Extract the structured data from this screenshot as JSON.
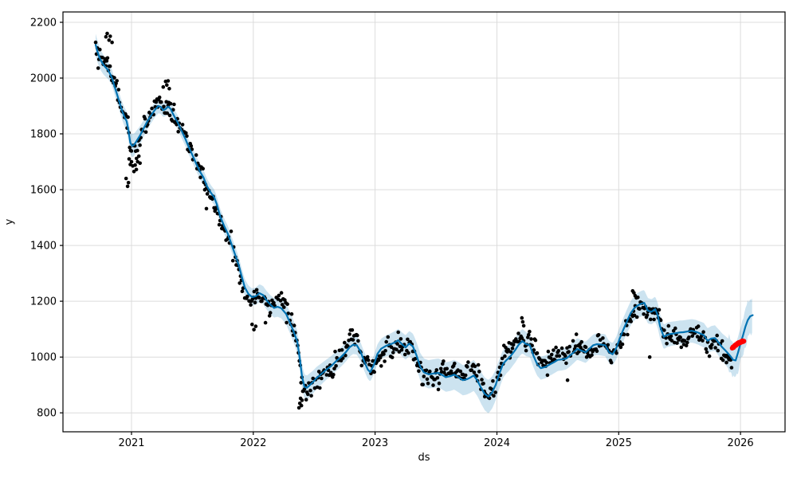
{
  "figure": {
    "kind": "matplotlib forecast plot"
  },
  "chart_data": {
    "type": "line",
    "title": "",
    "xlabel": "ds",
    "ylabel": "y",
    "xlim": [
      2020.437,
      2026.366
    ],
    "ylim": [
      732,
      2237
    ],
    "xticks": [
      2021,
      2022,
      2023,
      2024,
      2025,
      2026
    ],
    "yticks": [
      800,
      1000,
      1200,
      1400,
      1600,
      1800,
      2000,
      2200
    ],
    "grid": true,
    "legend": "none",
    "colors": {
      "trend_line": "#0072B2",
      "uncertainty_band": "#0072B2",
      "band_opacity": 0.2,
      "history_points": "#000000",
      "highlight_points": "#ff0000",
      "grid_line": "#dcdcdc",
      "spine": "#000000"
    },
    "series": [
      {
        "name": "forecast-trend-yhat",
        "kind": "line",
        "width": 2.2,
        "points": [
          [
            2020.705,
            2119
          ],
          [
            2020.72,
            2096
          ],
          [
            2020.735,
            2076
          ],
          [
            2020.75,
            2062
          ],
          [
            2020.77,
            2047
          ],
          [
            2020.79,
            2037
          ],
          [
            2020.81,
            2027
          ],
          [
            2020.825,
            2014
          ],
          [
            2020.84,
            2000
          ],
          [
            2020.86,
            1971
          ],
          [
            2020.88,
            1943
          ],
          [
            2020.9,
            1914
          ],
          [
            2020.92,
            1886
          ],
          [
            2020.94,
            1863
          ],
          [
            2020.96,
            1845
          ],
          [
            2020.975,
            1812
          ],
          [
            2020.99,
            1768
          ],
          [
            2021.005,
            1757
          ],
          [
            2021.02,
            1760
          ],
          [
            2021.04,
            1773
          ],
          [
            2021.07,
            1794
          ],
          [
            2021.1,
            1820
          ],
          [
            2021.13,
            1845
          ],
          [
            2021.16,
            1866
          ],
          [
            2021.19,
            1885
          ],
          [
            2021.22,
            1900
          ],
          [
            2021.24,
            1897
          ],
          [
            2021.26,
            1885
          ],
          [
            2021.28,
            1889
          ],
          [
            2021.3,
            1898
          ],
          [
            2021.32,
            1890
          ],
          [
            2021.34,
            1872
          ],
          [
            2021.36,
            1856
          ],
          [
            2021.38,
            1840
          ],
          [
            2021.41,
            1812
          ],
          [
            2021.44,
            1784
          ],
          [
            2021.47,
            1752
          ],
          [
            2021.5,
            1724
          ],
          [
            2021.53,
            1694
          ],
          [
            2021.56,
            1666
          ],
          [
            2021.59,
            1644
          ],
          [
            2021.62,
            1612
          ],
          [
            2021.65,
            1590
          ],
          [
            2021.68,
            1572
          ],
          [
            2021.7,
            1548
          ],
          [
            2021.73,
            1502
          ],
          [
            2021.76,
            1470
          ],
          [
            2021.79,
            1443
          ],
          [
            2021.82,
            1406
          ],
          [
            2021.85,
            1368
          ],
          [
            2021.88,
            1330
          ],
          [
            2021.9,
            1296
          ],
          [
            2021.93,
            1250
          ],
          [
            2021.96,
            1226
          ],
          [
            2021.99,
            1215
          ],
          [
            2022.02,
            1218
          ],
          [
            2022.05,
            1229
          ],
          [
            2022.08,
            1222
          ],
          [
            2022.11,
            1203
          ],
          [
            2022.14,
            1188
          ],
          [
            2022.17,
            1176
          ],
          [
            2022.2,
            1180
          ],
          [
            2022.23,
            1175
          ],
          [
            2022.27,
            1154
          ],
          [
            2022.3,
            1124
          ],
          [
            2022.33,
            1092
          ],
          [
            2022.36,
            1056
          ],
          [
            2022.38,
            1000
          ],
          [
            2022.4,
            930
          ],
          [
            2022.42,
            893
          ],
          [
            2022.44,
            890
          ],
          [
            2022.46,
            898
          ],
          [
            2022.49,
            910
          ],
          [
            2022.52,
            925
          ],
          [
            2022.56,
            940
          ],
          [
            2022.6,
            955
          ],
          [
            2022.64,
            968
          ],
          [
            2022.68,
            985
          ],
          [
            2022.72,
            1000
          ],
          [
            2022.76,
            1018
          ],
          [
            2022.79,
            1035
          ],
          [
            2022.82,
            1044
          ],
          [
            2022.85,
            1042
          ],
          [
            2022.88,
            1020
          ],
          [
            2022.91,
            985
          ],
          [
            2022.94,
            955
          ],
          [
            2022.96,
            946
          ],
          [
            2022.99,
            972
          ],
          [
            2023.02,
            1012
          ],
          [
            2023.05,
            1030
          ],
          [
            2023.09,
            1040
          ],
          [
            2023.13,
            1046
          ],
          [
            2023.16,
            1052
          ],
          [
            2023.19,
            1060
          ],
          [
            2023.22,
            1046
          ],
          [
            2023.25,
            1034
          ],
          [
            2023.28,
            1048
          ],
          [
            2023.31,
            1038
          ],
          [
            2023.34,
            1006
          ],
          [
            2023.37,
            966
          ],
          [
            2023.4,
            945
          ],
          [
            2023.44,
            938
          ],
          [
            2023.48,
            941
          ],
          [
            2023.52,
            943
          ],
          [
            2023.55,
            936
          ],
          [
            2023.58,
            928
          ],
          [
            2023.62,
            932
          ],
          [
            2023.65,
            937
          ],
          [
            2023.69,
            926
          ],
          [
            2023.72,
            917
          ],
          [
            2023.75,
            920
          ],
          [
            2023.78,
            926
          ],
          [
            2023.81,
            934
          ],
          [
            2023.84,
            916
          ],
          [
            2023.87,
            890
          ],
          [
            2023.9,
            868
          ],
          [
            2023.93,
            858
          ],
          [
            2023.96,
            872
          ],
          [
            2023.99,
            900
          ],
          [
            2024.02,
            940
          ],
          [
            2024.05,
            975
          ],
          [
            2024.08,
            990
          ],
          [
            2024.1,
            997
          ],
          [
            2024.12,
            1008
          ],
          [
            2024.15,
            1025
          ],
          [
            2024.18,
            1045
          ],
          [
            2024.21,
            1057
          ],
          [
            2024.24,
            1046
          ],
          [
            2024.27,
            1043
          ],
          [
            2024.3,
            1005
          ],
          [
            2024.33,
            975
          ],
          [
            2024.36,
            960
          ],
          [
            2024.4,
            965
          ],
          [
            2024.44,
            975
          ],
          [
            2024.47,
            982
          ],
          [
            2024.5,
            990
          ],
          [
            2024.54,
            992
          ],
          [
            2024.57,
            995
          ],
          [
            2024.6,
            1005
          ],
          [
            2024.63,
            1017
          ],
          [
            2024.66,
            1029
          ],
          [
            2024.7,
            1022
          ],
          [
            2024.73,
            1017
          ],
          [
            2024.76,
            1030
          ],
          [
            2024.79,
            1042
          ],
          [
            2024.82,
            1046
          ],
          [
            2024.86,
            1044
          ],
          [
            2024.89,
            1042
          ],
          [
            2024.92,
            1018
          ],
          [
            2024.95,
            1010
          ],
          [
            2024.98,
            1032
          ],
          [
            2025.01,
            1068
          ],
          [
            2025.04,
            1100
          ],
          [
            2025.07,
            1130
          ],
          [
            2025.1,
            1158
          ],
          [
            2025.13,
            1176
          ],
          [
            2025.16,
            1186
          ],
          [
            2025.19,
            1192
          ],
          [
            2025.21,
            1194
          ],
          [
            2025.24,
            1166
          ],
          [
            2025.27,
            1162
          ],
          [
            2025.3,
            1172
          ],
          [
            2025.32,
            1150
          ],
          [
            2025.34,
            1110
          ],
          [
            2025.37,
            1072
          ],
          [
            2025.4,
            1080
          ],
          [
            2025.43,
            1083
          ],
          [
            2025.46,
            1085
          ],
          [
            2025.5,
            1088
          ],
          [
            2025.53,
            1089
          ],
          [
            2025.57,
            1092
          ],
          [
            2025.6,
            1094
          ],
          [
            2025.63,
            1091
          ],
          [
            2025.66,
            1086
          ],
          [
            2025.7,
            1078
          ],
          [
            2025.73,
            1058
          ],
          [
            2025.76,
            1066
          ],
          [
            2025.79,
            1068
          ],
          [
            2025.82,
            1052
          ],
          [
            2025.85,
            1035
          ],
          [
            2025.88,
            1022
          ],
          [
            2025.9,
            1012
          ],
          [
            2025.92,
            1002
          ],
          [
            2025.94,
            990
          ],
          [
            2025.96,
            988
          ],
          [
            2025.98,
            1016
          ],
          [
            2026.0,
            1048
          ],
          [
            2026.02,
            1076
          ],
          [
            2026.04,
            1108
          ],
          [
            2026.06,
            1132
          ],
          [
            2026.08,
            1146
          ],
          [
            2026.1,
            1150
          ]
        ]
      },
      {
        "name": "uncertainty-interval",
        "kind": "band",
        "halfwidth": [
          [
            2020.705,
            40
          ],
          [
            2020.85,
            28
          ],
          [
            2020.95,
            34
          ],
          [
            2021.01,
            42
          ],
          [
            2021.1,
            30
          ],
          [
            2021.25,
            25
          ],
          [
            2021.4,
            26
          ],
          [
            2021.6,
            27
          ],
          [
            2021.8,
            28
          ],
          [
            2021.95,
            30
          ],
          [
            2022.1,
            33
          ],
          [
            2022.3,
            38
          ],
          [
            2022.43,
            44
          ],
          [
            2022.6,
            36
          ],
          [
            2022.85,
            33
          ],
          [
            2023.0,
            34
          ],
          [
            2023.2,
            42
          ],
          [
            2023.4,
            50
          ],
          [
            2023.6,
            53
          ],
          [
            2023.85,
            56
          ],
          [
            2023.93,
            60
          ],
          [
            2024.1,
            46
          ],
          [
            2024.3,
            42
          ],
          [
            2024.5,
            40
          ],
          [
            2024.75,
            38
          ],
          [
            2024.95,
            40
          ],
          [
            2025.2,
            46
          ],
          [
            2025.35,
            44
          ],
          [
            2025.6,
            42
          ],
          [
            2025.8,
            46
          ],
          [
            2025.93,
            55
          ],
          [
            2026.0,
            55
          ],
          [
            2026.1,
            58
          ]
        ],
        "jitter_start": 2025.89,
        "jitter_amp": 22,
        "sample_step": 0.009
      },
      {
        "name": "history-observed-points",
        "kind": "scatter-generated",
        "t_start": 2020.705,
        "t_end": 2025.928,
        "step": 0.007,
        "sigma": 17,
        "walk_step": 6,
        "walk_max": 28,
        "wobble_amp": 8,
        "wobble_freq": 326,
        "drop_rate": 0.1,
        "seed": 42,
        "radius": 2.3
      },
      {
        "name": "history-outlier-points",
        "kind": "scatter",
        "radius": 2.3,
        "points": [
          [
            2020.79,
            2148
          ],
          [
            2020.8,
            2160
          ],
          [
            2020.815,
            2136
          ],
          [
            2020.825,
            2150
          ],
          [
            2020.84,
            2128
          ],
          [
            2020.955,
            1640
          ],
          [
            2020.968,
            1612
          ],
          [
            2020.975,
            1625
          ],
          [
            2020.98,
            1710
          ],
          [
            2020.99,
            1690
          ],
          [
            2021.0,
            1700
          ],
          [
            2021.01,
            1685
          ],
          [
            2021.02,
            1665
          ],
          [
            2021.03,
            1688
          ],
          [
            2021.04,
            1672
          ],
          [
            2021.05,
            1700
          ],
          [
            2021.06,
            1720
          ],
          [
            2021.07,
            1695
          ],
          [
            2021.26,
            1968
          ],
          [
            2021.28,
            1988
          ],
          [
            2021.29,
            1975
          ],
          [
            2021.3,
            1990
          ],
          [
            2021.31,
            1962
          ],
          [
            2021.615,
            1532
          ],
          [
            2021.99,
            1117
          ],
          [
            2022.005,
            1098
          ],
          [
            2022.02,
            1110
          ],
          [
            2022.1,
            1123
          ],
          [
            2022.375,
            818
          ],
          [
            2022.382,
            834
          ],
          [
            2022.388,
            852
          ],
          [
            2022.395,
            826
          ],
          [
            2022.4,
            845
          ],
          [
            2023.9,
            858
          ],
          [
            2024.205,
            1140
          ],
          [
            2024.212,
            1126
          ],
          [
            2024.22,
            1112
          ],
          [
            2024.58,
            917
          ],
          [
            2025.115,
            1237
          ],
          [
            2025.125,
            1230
          ],
          [
            2025.135,
            1220
          ],
          [
            2025.145,
            1212
          ],
          [
            2025.255,
            1000
          ],
          [
            2025.88,
            1002
          ]
        ]
      },
      {
        "name": "highlighted-recent-points",
        "kind": "scatter",
        "radius": 3,
        "color": "#ff0000",
        "points": [
          [
            2025.932,
            1032
          ],
          [
            2025.938,
            1036
          ],
          [
            2025.944,
            1034
          ],
          [
            2025.95,
            1040
          ],
          [
            2025.956,
            1043
          ],
          [
            2025.962,
            1041
          ],
          [
            2025.968,
            1046
          ],
          [
            2025.974,
            1049
          ],
          [
            2025.98,
            1047
          ],
          [
            2025.986,
            1052
          ],
          [
            2025.992,
            1050
          ],
          [
            2025.998,
            1054
          ],
          [
            2026.004,
            1052
          ],
          [
            2026.01,
            1056
          ],
          [
            2026.016,
            1058
          ],
          [
            2026.022,
            1055
          ],
          [
            2026.028,
            1057
          ]
        ]
      }
    ]
  }
}
